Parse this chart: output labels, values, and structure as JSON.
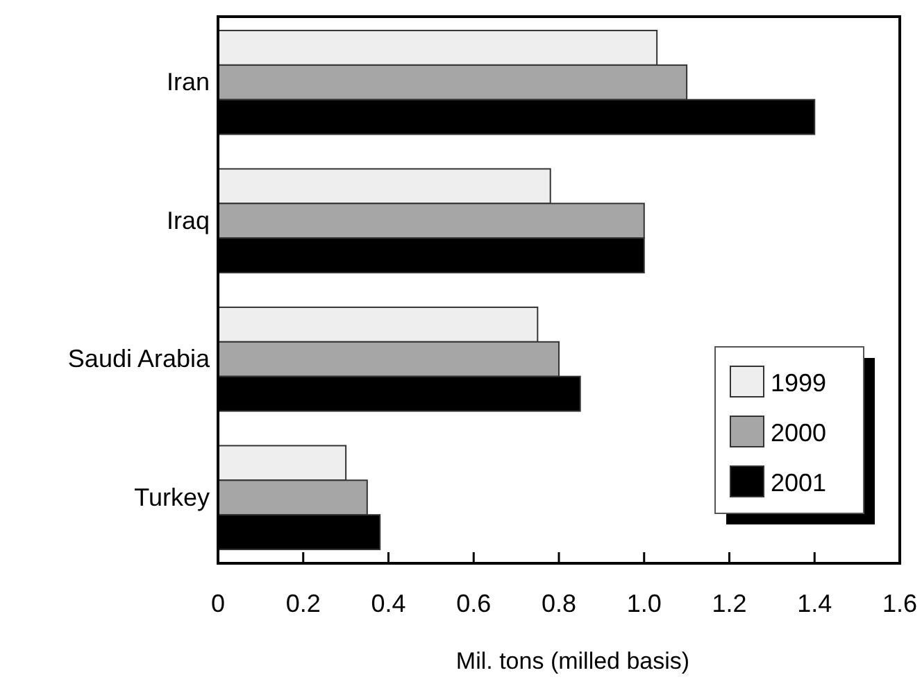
{
  "chart_data": {
    "type": "bar",
    "orientation": "horizontal",
    "xlabel": "Mil. tons (milled basis)",
    "categories": [
      "Iran",
      "Iraq",
      "Saudi Arabia",
      "Turkey"
    ],
    "series": [
      {
        "name": "1999",
        "color": "#eeeeee",
        "values": [
          1.03,
          0.78,
          0.75,
          0.3
        ]
      },
      {
        "name": "2000",
        "color": "#a6a6a6",
        "values": [
          1.1,
          1.0,
          0.8,
          0.35
        ]
      },
      {
        "name": "2001",
        "color": "#000000",
        "values": [
          1.4,
          1.0,
          0.85,
          0.38
        ]
      }
    ],
    "xlim": [
      0,
      1.6
    ],
    "xticks": [
      0,
      0.2,
      0.4,
      0.6,
      0.8,
      {
        "value": 1.0,
        "label": "1.0"
      },
      1.2,
      1.4,
      1.6
    ],
    "grid": false,
    "legend": "bottom right"
  }
}
